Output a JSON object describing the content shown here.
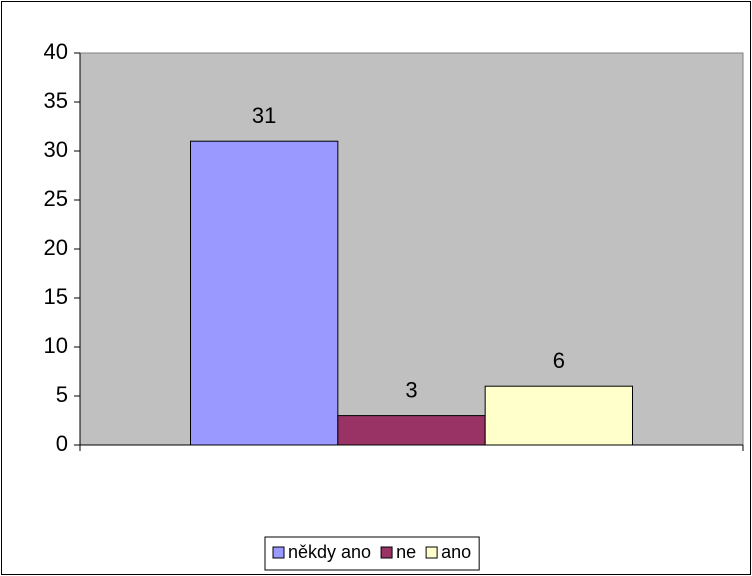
{
  "chart_data": {
    "type": "bar",
    "categories": [
      null
    ],
    "series": [
      {
        "name": "někdy ano",
        "color": "#9999ff",
        "values": [
          31
        ]
      },
      {
        "name": "ne",
        "color": "#993366",
        "values": [
          3
        ]
      },
      {
        "name": "ano",
        "color": "#ffffcc",
        "values": [
          6
        ]
      }
    ],
    "ylim": [
      0,
      40
    ],
    "yticks": [
      0,
      5,
      10,
      15,
      20,
      25,
      30,
      35,
      40
    ],
    "grid": false,
    "data_labels": true,
    "legend": "bottom"
  }
}
